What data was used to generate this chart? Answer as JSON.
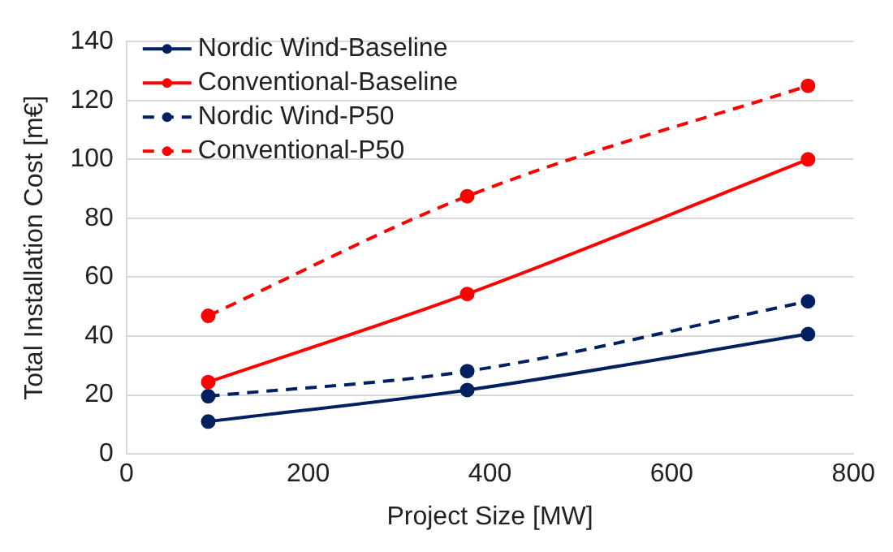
{
  "chart_data": {
    "type": "line",
    "xlabel": "Project Size [MW]",
    "ylabel": "Total Installation Cost [m€]",
    "xlim": [
      0,
      800
    ],
    "xticks": [
      0,
      200,
      400,
      600,
      800
    ],
    "ylim": [
      0,
      140
    ],
    "yticks": [
      0,
      20,
      40,
      60,
      80,
      100,
      120,
      140
    ],
    "grid": "y",
    "legend": "top left",
    "marker": "circle",
    "series": [
      {
        "name": "Nordic Wind-Baseline",
        "color": "#002060",
        "line_style": "solid",
        "x": [
          90,
          375,
          750
        ],
        "values": [
          11,
          21.7,
          40.7
        ]
      },
      {
        "name": "Conventional-Baseline",
        "color": "#ff0000",
        "line_style": "solid",
        "x": [
          90,
          375,
          750
        ],
        "values": [
          24.4,
          54.3,
          100
        ]
      },
      {
        "name": "Nordic Wind-P50",
        "color": "#002060",
        "line_style": "dashed",
        "x": [
          90,
          375,
          750
        ],
        "values": [
          19.6,
          28.1,
          51.8
        ]
      },
      {
        "name": "Conventional-P50",
        "color": "#ff0000",
        "line_style": "dashed",
        "x": [
          90,
          375,
          750
        ],
        "values": [
          46.9,
          87.5,
          125
        ]
      }
    ]
  }
}
